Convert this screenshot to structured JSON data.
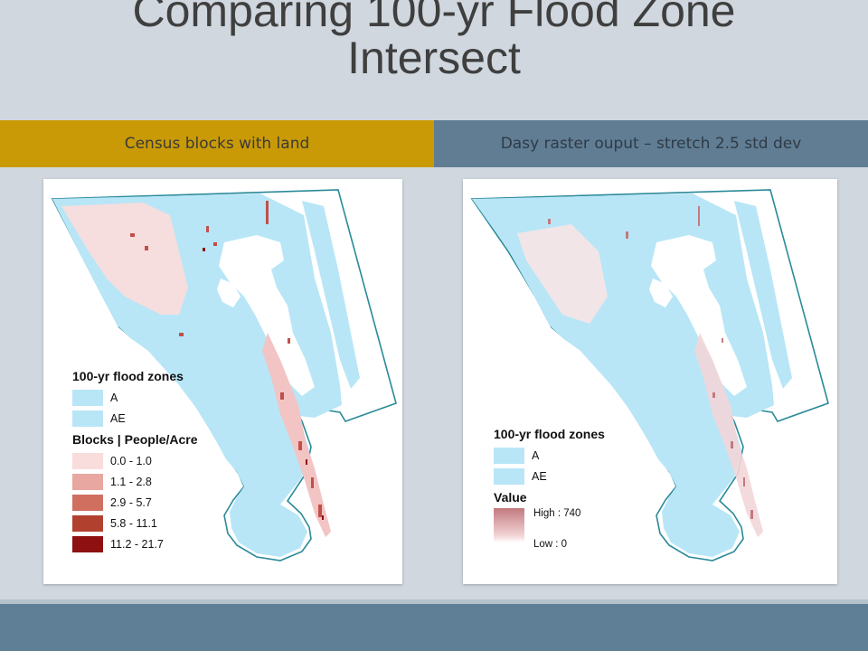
{
  "title": {
    "line1": "Comparing 100-yr Flood Zone",
    "line2": "Intersect"
  },
  "columns": {
    "left_heading": "Census blocks with land",
    "right_heading": "Dasy raster ouput – stretch 2.5 std dev"
  },
  "colors": {
    "left_heading_bg": "#c99a05",
    "right_heading_bg": "#607d94",
    "flood_zone": "#b8e6f7",
    "boundary": "#2a8a99",
    "block_class_1": "#f9dcdc",
    "block_class_2": "#e8a7a0",
    "block_class_3": "#d06f60",
    "block_class_4": "#b2402f",
    "block_class_5": "#8e1010"
  },
  "left_map": {
    "legend": {
      "flood_title": "100-yr flood zones",
      "flood_items": [
        {
          "label": "A"
        },
        {
          "label": "AE"
        }
      ],
      "blocks_title": "Blocks | People/Acre",
      "block_classes": [
        {
          "label": "0.0 - 1.0"
        },
        {
          "label": "1.1 - 2.8"
        },
        {
          "label": "2.9 - 5.7"
        },
        {
          "label": "5.8 - 11.1"
        },
        {
          "label": "11.2 - 21.7"
        }
      ]
    }
  },
  "right_map": {
    "legend": {
      "flood_title": "100-yr flood zones",
      "flood_items": [
        {
          "label": "A"
        },
        {
          "label": "AE"
        }
      ],
      "value_title": "Value",
      "high_label": "High : 740",
      "low_label": "Low : 0"
    }
  }
}
